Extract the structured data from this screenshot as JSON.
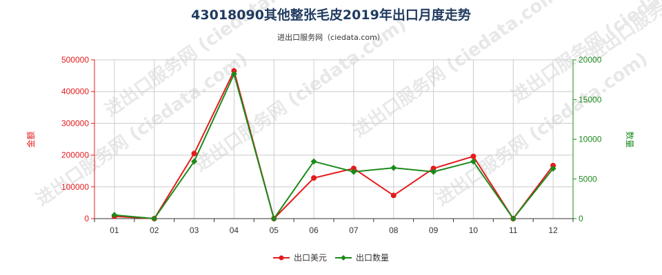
{
  "header": {
    "title": "43018090其他整张毛皮2019年出口月度走势",
    "subtitle": "进出口服务网（ciedata.com）"
  },
  "watermark": "进出口服务网 (ciedata.com)",
  "colors": {
    "amount": "#e41a1c",
    "quantity": "#1a8a1a",
    "left_axis": "#e41a1c",
    "right_axis": "#1a8a1a",
    "grid": "#cccccc"
  },
  "chart_data": {
    "type": "line",
    "categories": [
      "01",
      "02",
      "03",
      "04",
      "05",
      "06",
      "07",
      "08",
      "09",
      "10",
      "11",
      "12"
    ],
    "series": [
      {
        "name": "出口美元",
        "axis": "left",
        "values": [
          7000,
          0,
          205000,
          465000,
          0,
          128000,
          158000,
          73000,
          158000,
          196000,
          0,
          167000
        ]
      },
      {
        "name": "出口数量",
        "axis": "right",
        "values": [
          450,
          0,
          7200,
          18200,
          0,
          7200,
          5900,
          6400,
          5900,
          7200,
          0,
          6300
        ]
      }
    ],
    "ylabel_left": "金额",
    "ylabel_right": "数量",
    "ylim_left": [
      0,
      500000
    ],
    "ylim_right": [
      0,
      20000
    ],
    "yticks_left": [
      "0",
      "100000",
      "200000",
      "300000",
      "400000",
      "500000"
    ],
    "yticks_right": [
      "0",
      "5000",
      "10000",
      "15000",
      "20000"
    ],
    "grid": true,
    "legend_position": "bottom"
  }
}
